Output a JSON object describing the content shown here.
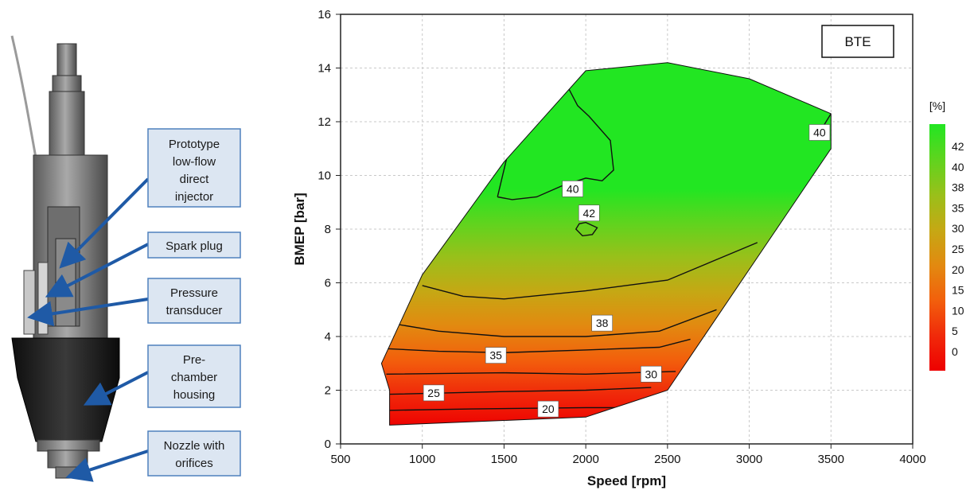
{
  "figure": {
    "callouts": [
      {
        "lines": [
          "Prototype",
          "low-flow",
          "direct",
          "injector"
        ]
      },
      {
        "lines": [
          "Spark plug"
        ]
      },
      {
        "lines": [
          "Pressure",
          "transducer"
        ]
      },
      {
        "lines": [
          "Pre-",
          "chamber",
          "housing"
        ]
      },
      {
        "lines": [
          "Nozzle with",
          "orifices"
        ]
      }
    ],
    "colors": {
      "callout_fill": "#dce6f2",
      "callout_border": "#4f81bd",
      "arrow": "#1f5aa6"
    }
  },
  "chart_data": {
    "type": "heatmap",
    "subtype": "contour",
    "title": "BTE",
    "xlabel": "Speed [rpm]",
    "ylabel": "BMEP [bar]",
    "xlim": [
      500,
      4000
    ],
    "ylim": [
      0,
      16
    ],
    "xticks": [
      500,
      1000,
      1500,
      2000,
      2500,
      3000,
      3500,
      4000
    ],
    "yticks": [
      0,
      2,
      4,
      6,
      8,
      10,
      12,
      14,
      16
    ],
    "grid": true,
    "legend_position": "top-right",
    "colorbar": {
      "unit": "[%]",
      "labels": [
        "42",
        "40",
        "38",
        "35",
        "30",
        "25",
        "20",
        "15",
        "10",
        "5",
        "0"
      ],
      "colors_top_to_bottom": [
        "#22e622",
        "#5fd41e",
        "#99c01a",
        "#c5a814",
        "#e28a10",
        "#f2600c",
        "#f02a0a",
        "#ee0000"
      ]
    },
    "region_boundary": [
      [
        750,
        3.0
      ],
      [
        1000,
        6.3
      ],
      [
        1500,
        10.5
      ],
      [
        2000,
        13.9
      ],
      [
        2500,
        14.2
      ],
      [
        3000,
        13.6
      ],
      [
        3500,
        12.3
      ],
      [
        3500,
        11.0
      ],
      [
        2500,
        2.0
      ],
      [
        2000,
        1.0
      ],
      [
        800,
        0.7
      ],
      [
        800,
        2.0
      ],
      [
        750,
        3.0
      ]
    ],
    "contours": [
      {
        "level": "42",
        "points": [
          [
            1940,
            8.0
          ],
          [
            1960,
            8.2
          ],
          [
            2000,
            8.25
          ],
          [
            2070,
            8.05
          ],
          [
            2040,
            7.8
          ],
          [
            1980,
            7.75
          ],
          [
            1940,
            8.0
          ]
        ],
        "closed": true
      },
      {
        "level": "40",
        "points": [
          [
            1460,
            9.2
          ],
          [
            1550,
            9.1
          ],
          [
            1700,
            9.2
          ],
          [
            1850,
            9.6
          ],
          [
            2000,
            9.9
          ],
          [
            2100,
            9.8
          ],
          [
            2170,
            10.2
          ],
          [
            2150,
            11.3
          ],
          [
            2020,
            12.2
          ],
          [
            1950,
            12.6
          ],
          [
            1890,
            13.3
          ],
          [
            1770,
            13.4
          ],
          [
            1650,
            12.8
          ],
          [
            1550,
            11.5
          ],
          [
            1460,
            9.2
          ]
        ]
      },
      {
        "level": "40",
        "points": [
          [
            3380,
            11.3
          ],
          [
            3450,
            11.8
          ],
          [
            3500,
            12.3
          ]
        ]
      },
      {
        "level": "38",
        "points": [
          [
            1000,
            5.9
          ],
          [
            1250,
            5.5
          ],
          [
            1500,
            5.4
          ],
          [
            2000,
            5.7
          ],
          [
            2500,
            6.1
          ],
          [
            3050,
            7.5
          ]
        ]
      },
      {
        "level": "35",
        "points": [
          [
            800,
            4.5
          ],
          [
            1100,
            4.2
          ],
          [
            1500,
            4.0
          ],
          [
            2000,
            4.0
          ],
          [
            2450,
            4.2
          ],
          [
            2800,
            5.0
          ]
        ]
      },
      {
        "level": "30",
        "points": [
          [
            770,
            3.55
          ],
          [
            1100,
            3.45
          ],
          [
            1500,
            3.4
          ],
          [
            2000,
            3.5
          ],
          [
            2450,
            3.6
          ],
          [
            2640,
            3.9
          ]
        ]
      },
      {
        "level": "25",
        "points": [
          [
            780,
            2.6
          ],
          [
            1500,
            2.65
          ],
          [
            2000,
            2.6
          ],
          [
            2550,
            2.7
          ]
        ]
      },
      {
        "level": "20",
        "points": [
          [
            800,
            1.85
          ],
          [
            1500,
            1.95
          ],
          [
            2000,
            2.0
          ],
          [
            2400,
            2.1
          ]
        ]
      },
      {
        "level": "15",
        "points": [
          [
            800,
            1.25
          ],
          [
            1300,
            1.3
          ],
          [
            2000,
            1.35
          ],
          [
            2200,
            1.35
          ]
        ]
      }
    ],
    "labels": [
      {
        "text": "42",
        "x": 2020,
        "y": 8.6
      },
      {
        "text": "40",
        "x": 1920,
        "y": 9.5
      },
      {
        "text": "40",
        "x": 3430,
        "y": 11.6
      },
      {
        "text": "38",
        "x": 2100,
        "y": 4.5
      },
      {
        "text": "35",
        "x": 1450,
        "y": 3.3
      },
      {
        "text": "30",
        "x": 2400,
        "y": 2.6
      },
      {
        "text": "25",
        "x": 1070,
        "y": 1.9
      },
      {
        "text": "20",
        "x": 1770,
        "y": 1.3
      }
    ]
  }
}
